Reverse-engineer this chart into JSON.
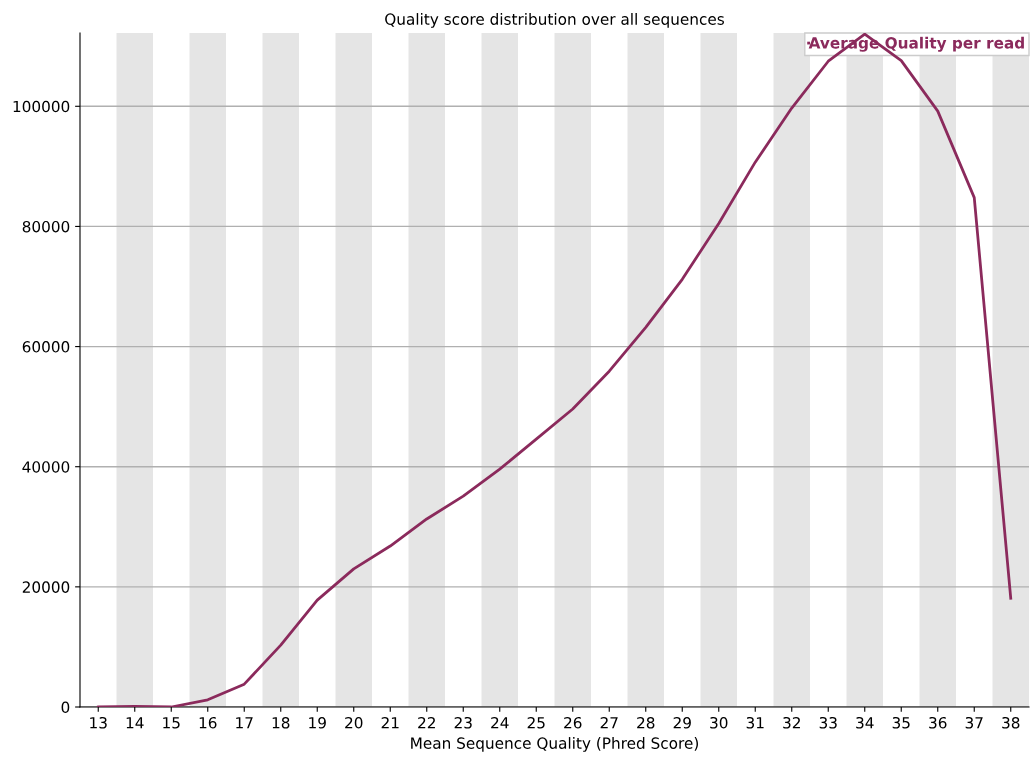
{
  "chart_data": {
    "type": "line",
    "title": "Quality score distribution over all sequences",
    "xlabel": "Mean Sequence Quality (Phred Score)",
    "categories": [
      "13",
      "14",
      "15",
      "16",
      "17",
      "18",
      "19",
      "20",
      "21",
      "22",
      "23",
      "24",
      "25",
      "26",
      "27",
      "28",
      "29",
      "30",
      "31",
      "32",
      "33",
      "34",
      "35",
      "36",
      "37",
      "38"
    ],
    "series": [
      {
        "name": "Average Quality per read",
        "color": "#8b2a5c",
        "values": [
          0,
          100,
          0,
          1200,
          3800,
          10300,
          17800,
          23000,
          26800,
          31300,
          35100,
          39600,
          44600,
          49600,
          55900,
          63200,
          71200,
          80500,
          90700,
          99700,
          107500,
          112000,
          107600,
          99200,
          84800,
          18100
        ]
      }
    ],
    "ylim": [
      0,
      112200
    ],
    "yticks": [
      0,
      20000,
      40000,
      60000,
      80000,
      100000
    ],
    "grid": "y",
    "legend": "top right",
    "marker": "none",
    "line_style": "solid"
  }
}
